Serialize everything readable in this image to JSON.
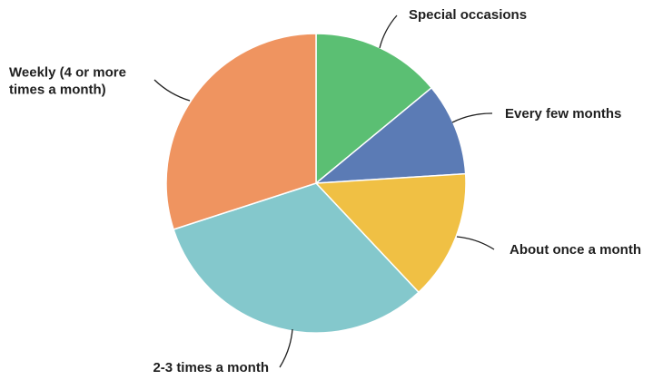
{
  "chart_data": {
    "type": "pie",
    "title": "",
    "start_angle_deg": 0,
    "direction": "clockwise",
    "slices": [
      {
        "label": [
          "Special occasions"
        ],
        "value": 14,
        "color": "#5bbf73"
      },
      {
        "label": [
          "Every few months"
        ],
        "value": 10,
        "color": "#5b7bb5"
      },
      {
        "label": [
          "About once a month"
        ],
        "value": 14,
        "color": "#f0c044"
      },
      {
        "label": [
          "2-3 times a month"
        ],
        "value": 32,
        "color": "#84c8cc"
      },
      {
        "label": [
          "Weekly (4 or more",
          "times a month)"
        ],
        "value": 30,
        "color": "#ef9460"
      }
    ],
    "slice_edge_color": "#ffffff",
    "leader_color": "#1f1f1f"
  }
}
